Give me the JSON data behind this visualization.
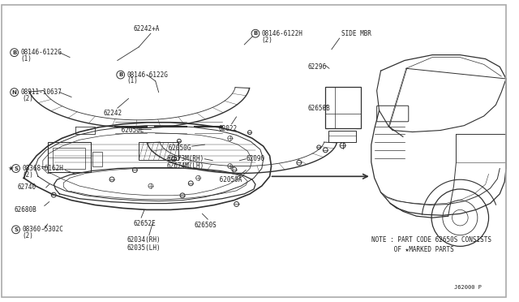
{
  "bg_color": "#ffffff",
  "line_color": "#303030",
  "text_color": "#202020",
  "border_color": "#aaaaaa",
  "fig_width": 6.4,
  "fig_height": 3.72,
  "note_line1": "NOTE : PART CODE 62650S CONSISTS",
  "note_line2": "      OF ★MARKED PARTS",
  "diagram_id": "J62000 P"
}
